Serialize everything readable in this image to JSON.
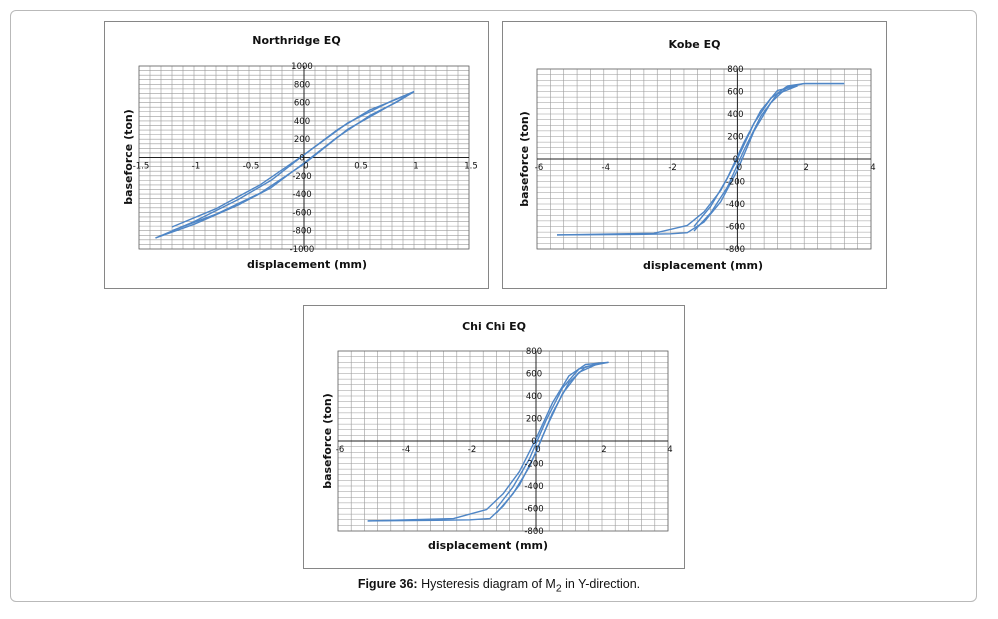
{
  "caption": {
    "label": "Figure 36:",
    "text_before": "Hysteresis diagram of M",
    "subscript": "2",
    "text_after": " in Y-direction."
  },
  "colors": {
    "series": "#4f86c6",
    "grid": "#9a9a9a",
    "axis": "#222222"
  },
  "chart_data": [
    {
      "type": "line",
      "title": "Northridge EQ",
      "xlabel": "displacement (mm)",
      "ylabel": "baseforce (ton)",
      "xlim": [
        -1.5,
        1.5
      ],
      "ylim": [
        -1000,
        1000
      ],
      "xticks": [
        -1.5,
        -1,
        -0.5,
        0,
        0.5,
        1,
        1.5
      ],
      "xtick_labels": [
        "-1.5",
        "-1",
        "-0.5",
        "0",
        "0.5",
        "1",
        "1.5"
      ],
      "yticks": [
        -1000,
        -800,
        -600,
        -400,
        -200,
        0,
        200,
        400,
        600,
        800,
        1000
      ],
      "ytick_labels": [
        "-1000",
        "-800",
        "-600",
        "-400",
        "-200",
        "0",
        "200",
        "400",
        "600",
        "800",
        "1000"
      ],
      "grid": true,
      "series": [
        {
          "x": [
            -1.35,
            -1.0,
            -0.6,
            -0.3,
            0.0,
            0.3,
            0.6,
            0.85,
            1.0
          ],
          "y": [
            -880,
            -730,
            -520,
            -330,
            -60,
            220,
            460,
            610,
            720
          ]
        },
        {
          "x": [
            -1.35,
            -1.0,
            -0.6,
            -0.3,
            0.0,
            0.3,
            0.6,
            0.85,
            1.0
          ],
          "y": [
            -880,
            -700,
            -460,
            -250,
            30,
            300,
            520,
            640,
            720
          ]
        },
        {
          "x": [
            -1.2,
            -0.8,
            -0.4,
            0.0,
            0.4,
            0.8,
            1.0
          ],
          "y": [
            -800,
            -620,
            -390,
            -70,
            310,
            580,
            720
          ]
        },
        {
          "x": [
            -1.2,
            -0.8,
            -0.4,
            0.0,
            0.4,
            0.8,
            1.0
          ],
          "y": [
            -760,
            -560,
            -300,
            30,
            380,
            620,
            720
          ]
        }
      ]
    },
    {
      "type": "line",
      "title": "Kobe EQ",
      "xlabel": "displacement (mm)",
      "ylabel": "baseforce (ton)",
      "xlim": [
        -6,
        4
      ],
      "ylim": [
        -800,
        800
      ],
      "xticks": [
        -6,
        -4,
        -2,
        0,
        2,
        4
      ],
      "xtick_labels": [
        "-6",
        "-4",
        "-2",
        "0",
        "2",
        "4"
      ],
      "yticks": [
        -800,
        -600,
        -400,
        -200,
        0,
        200,
        400,
        600,
        800
      ],
      "ytick_labels": [
        "-800",
        "-600",
        "-400",
        "-200",
        "0",
        "200",
        "400",
        "600",
        "800"
      ],
      "grid": true,
      "series": [
        {
          "x": [
            -5.4,
            -3.0,
            -2.0,
            -1.5,
            -1.0,
            -0.5,
            0.0,
            0.5,
            1.0,
            1.5,
            2.0,
            3.2
          ],
          "y": [
            -675,
            -670,
            -665,
            -655,
            -560,
            -380,
            -100,
            250,
            500,
            640,
            670,
            670
          ]
        },
        {
          "x": [
            -5.4,
            -2.5,
            -1.5,
            -1.0,
            -0.5,
            0.0,
            0.5,
            1.0,
            1.5,
            2.0,
            3.2
          ],
          "y": [
            -675,
            -660,
            -590,
            -470,
            -280,
            0,
            320,
            540,
            650,
            670,
            670
          ]
        },
        {
          "x": [
            -1.3,
            -0.8,
            -0.3,
            0.2,
            0.7,
            1.2,
            1.8
          ],
          "y": [
            -640,
            -480,
            -250,
            80,
            380,
            580,
            650
          ]
        },
        {
          "x": [
            -1.3,
            -0.8,
            -0.3,
            0.2,
            0.7,
            1.2,
            1.8
          ],
          "y": [
            -600,
            -420,
            -170,
            150,
            430,
            610,
            650
          ]
        }
      ]
    },
    {
      "type": "line",
      "title": "Chi Chi EQ",
      "xlabel": "displacement (mm)",
      "ylabel": "baseforce (ton)",
      "xlim": [
        -6,
        4
      ],
      "ylim": [
        -800,
        800
      ],
      "xticks": [
        -6,
        -4,
        -2,
        0,
        2,
        4
      ],
      "xtick_labels": [
        "-6",
        "-4",
        "-2",
        "0",
        "2",
        "4"
      ],
      "yticks": [
        -800,
        -600,
        -400,
        -200,
        0,
        200,
        400,
        600,
        800
      ],
      "ytick_labels": [
        "-800",
        "-600",
        "-400",
        "-200",
        "0",
        "200",
        "400",
        "600",
        "800"
      ],
      "grid": true,
      "series": [
        {
          "x": [
            -5.1,
            -3.0,
            -2.0,
            -1.4,
            -1.0,
            -0.5,
            0.0,
            0.5,
            1.0,
            1.5,
            2.2
          ],
          "y": [
            -710,
            -705,
            -700,
            -690,
            -580,
            -390,
            -100,
            250,
            520,
            660,
            700
          ]
        },
        {
          "x": [
            -5.1,
            -2.5,
            -1.5,
            -1.0,
            -0.5,
            0.0,
            0.5,
            1.0,
            1.5,
            2.2
          ],
          "y": [
            -710,
            -690,
            -610,
            -470,
            -270,
            20,
            340,
            580,
            680,
            700
          ]
        },
        {
          "x": [
            -1.2,
            -0.7,
            -0.2,
            0.3,
            0.8,
            1.3,
            1.9
          ],
          "y": [
            -640,
            -470,
            -230,
            110,
            420,
            610,
            690
          ]
        },
        {
          "x": [
            -1.2,
            -0.7,
            -0.2,
            0.3,
            0.8,
            1.3,
            1.9
          ],
          "y": [
            -600,
            -410,
            -160,
            180,
            470,
            640,
            690
          ]
        }
      ]
    }
  ]
}
